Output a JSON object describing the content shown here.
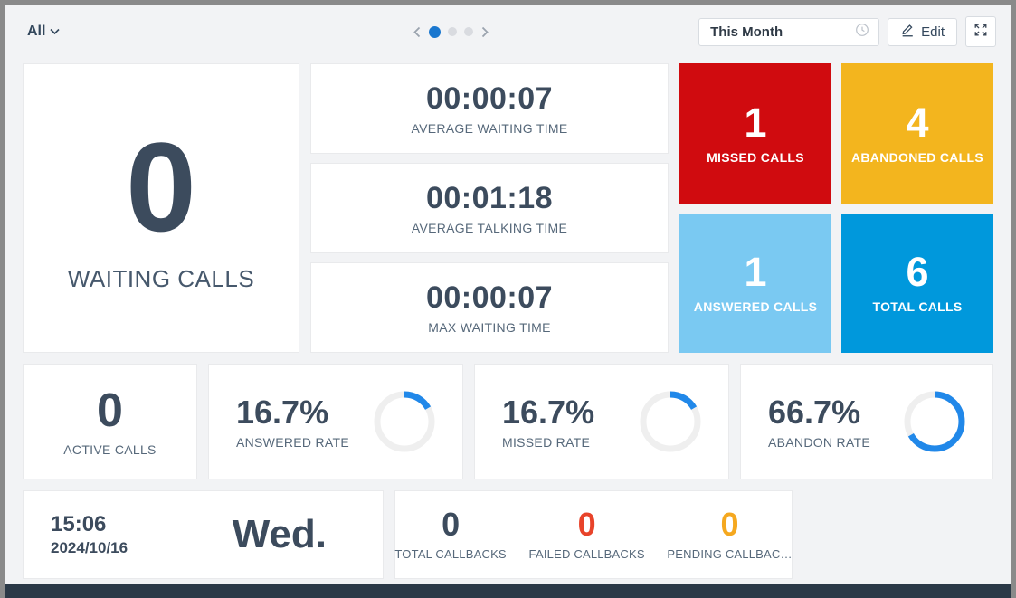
{
  "header": {
    "filter_label": "All",
    "pagination": {
      "total_pages": 3,
      "active_index": 0
    },
    "date_range_value": "This Month",
    "edit_label": "Edit"
  },
  "icons": {
    "chevron-down-icon": "v-shaped down arrow",
    "chevron-left-icon": "‹",
    "chevron-right-icon": "›",
    "clock-icon": "clock outline",
    "pencil-icon": "pencil over line (edit)",
    "expand-icon": "four arrows pointing outward (fullscreen)"
  },
  "waiting_calls": {
    "value": "0",
    "label": "WAITING CALLS"
  },
  "time_stats": [
    {
      "value": "00:00:07",
      "label": "AVERAGE WAITING TIME"
    },
    {
      "value": "00:01:18",
      "label": "AVERAGE TALKING TIME"
    },
    {
      "value": "00:00:07",
      "label": "MAX WAITING TIME"
    }
  ],
  "call_tiles": [
    {
      "value": "1",
      "label": "MISSED CALLS",
      "color": "#d00b0f"
    },
    {
      "value": "4",
      "label": "ABANDONED CALLS",
      "color": "#f3b51e"
    },
    {
      "value": "1",
      "label": "ANSWERED CALLS",
      "color": "#7ac9f2"
    },
    {
      "value": "6",
      "label": "TOTAL CALLS",
      "color": "#0098dc"
    }
  ],
  "active_calls": {
    "value": "0",
    "label": "ACTIVE CALLS"
  },
  "rates": [
    {
      "value": "16.7%",
      "percent": 16.7,
      "label": "ANSWERED RATE"
    },
    {
      "value": "16.7%",
      "percent": 16.7,
      "label": "MISSED RATE"
    },
    {
      "value": "66.7%",
      "percent": 66.7,
      "label": "ABANDON RATE"
    }
  ],
  "clock": {
    "time": "15:06",
    "date": "2024/10/16",
    "day": "Wed."
  },
  "callbacks": [
    {
      "value": "0",
      "label": "TOTAL CALLBACKS",
      "color": "#3c4b5d"
    },
    {
      "value": "0",
      "label": "FAILED CALLBACKS",
      "color": "#e8432a"
    },
    {
      "value": "0",
      "label": "PENDING CALLBAC…",
      "color": "#f5a81f"
    }
  ],
  "colors": {
    "page_background": "#f2f3f5",
    "frame": "#8a8a8a",
    "bottom_bar": "#2b3947",
    "primary_text": "#3c4b5d",
    "label_text": "#56687a",
    "donut_arc": "#2188e9",
    "donut_track": "#efefef",
    "active_dot": "#1a77cf"
  }
}
